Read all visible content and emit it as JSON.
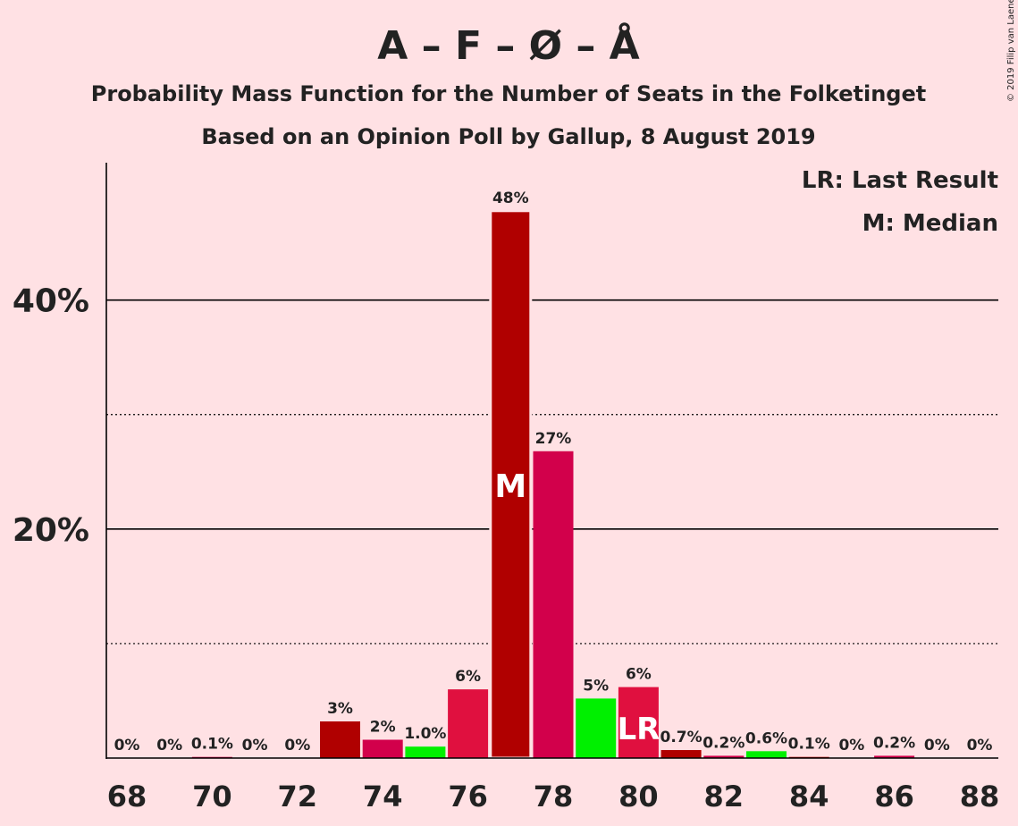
{
  "title": "A – F – Ø – Å",
  "subtitle1": "Probability Mass Function for the Number of Seats in the Folketinget",
  "subtitle2": "Based on an Opinion Poll by Gallup, 8 August 2019",
  "copyright": "© 2019 Filip van Laenen",
  "legend": {
    "lr": "LR: Last Result",
    "m": "M: Median"
  },
  "markers": {
    "median_label": "M",
    "last_result_label": "LR"
  },
  "colors": {
    "background": "#FFE1E4",
    "dark_red": "#B00000",
    "crimson": "#D2004B",
    "red": "#E0103F",
    "green": "#00F000"
  },
  "chart_data": {
    "type": "bar",
    "x": [
      68,
      69,
      70,
      71,
      72,
      73,
      74,
      75,
      76,
      77,
      78,
      79,
      80,
      81,
      82,
      83,
      84,
      85,
      86,
      87,
      88
    ],
    "values": [
      0,
      0,
      0.1,
      0,
      0,
      3.2,
      1.6,
      1.0,
      6.0,
      47.8,
      26.8,
      5.2,
      6.2,
      0.7,
      0.2,
      0.6,
      0.1,
      0,
      0.2,
      0,
      0
    ],
    "labels": [
      "0%",
      "0%",
      "0.1%",
      "0%",
      "0%",
      "3%",
      "2%",
      "1.0%",
      "6%",
      "48%",
      "27%",
      "5%",
      "6%",
      "0.7%",
      "0.2%",
      "0.6%",
      "0.1%",
      "0%",
      "0.2%",
      "0%",
      "0%"
    ],
    "bar_colors": [
      "dark_red",
      "dark_red",
      "crimson",
      "dark_red",
      "dark_red",
      "dark_red",
      "crimson",
      "green",
      "red",
      "dark_red",
      "crimson",
      "green",
      "red",
      "dark_red",
      "crimson",
      "green",
      "dark_red",
      "dark_red",
      "crimson",
      "dark_red",
      "dark_red"
    ],
    "xticks": [
      68,
      70,
      72,
      74,
      76,
      78,
      80,
      82,
      84,
      86,
      88
    ],
    "yticks_major": [
      20,
      40
    ],
    "ytick_labels": [
      "20%",
      "40%"
    ],
    "yticks_minor": [
      10,
      30
    ],
    "ylim": [
      0,
      52
    ],
    "median": 77,
    "last_result": 80
  }
}
